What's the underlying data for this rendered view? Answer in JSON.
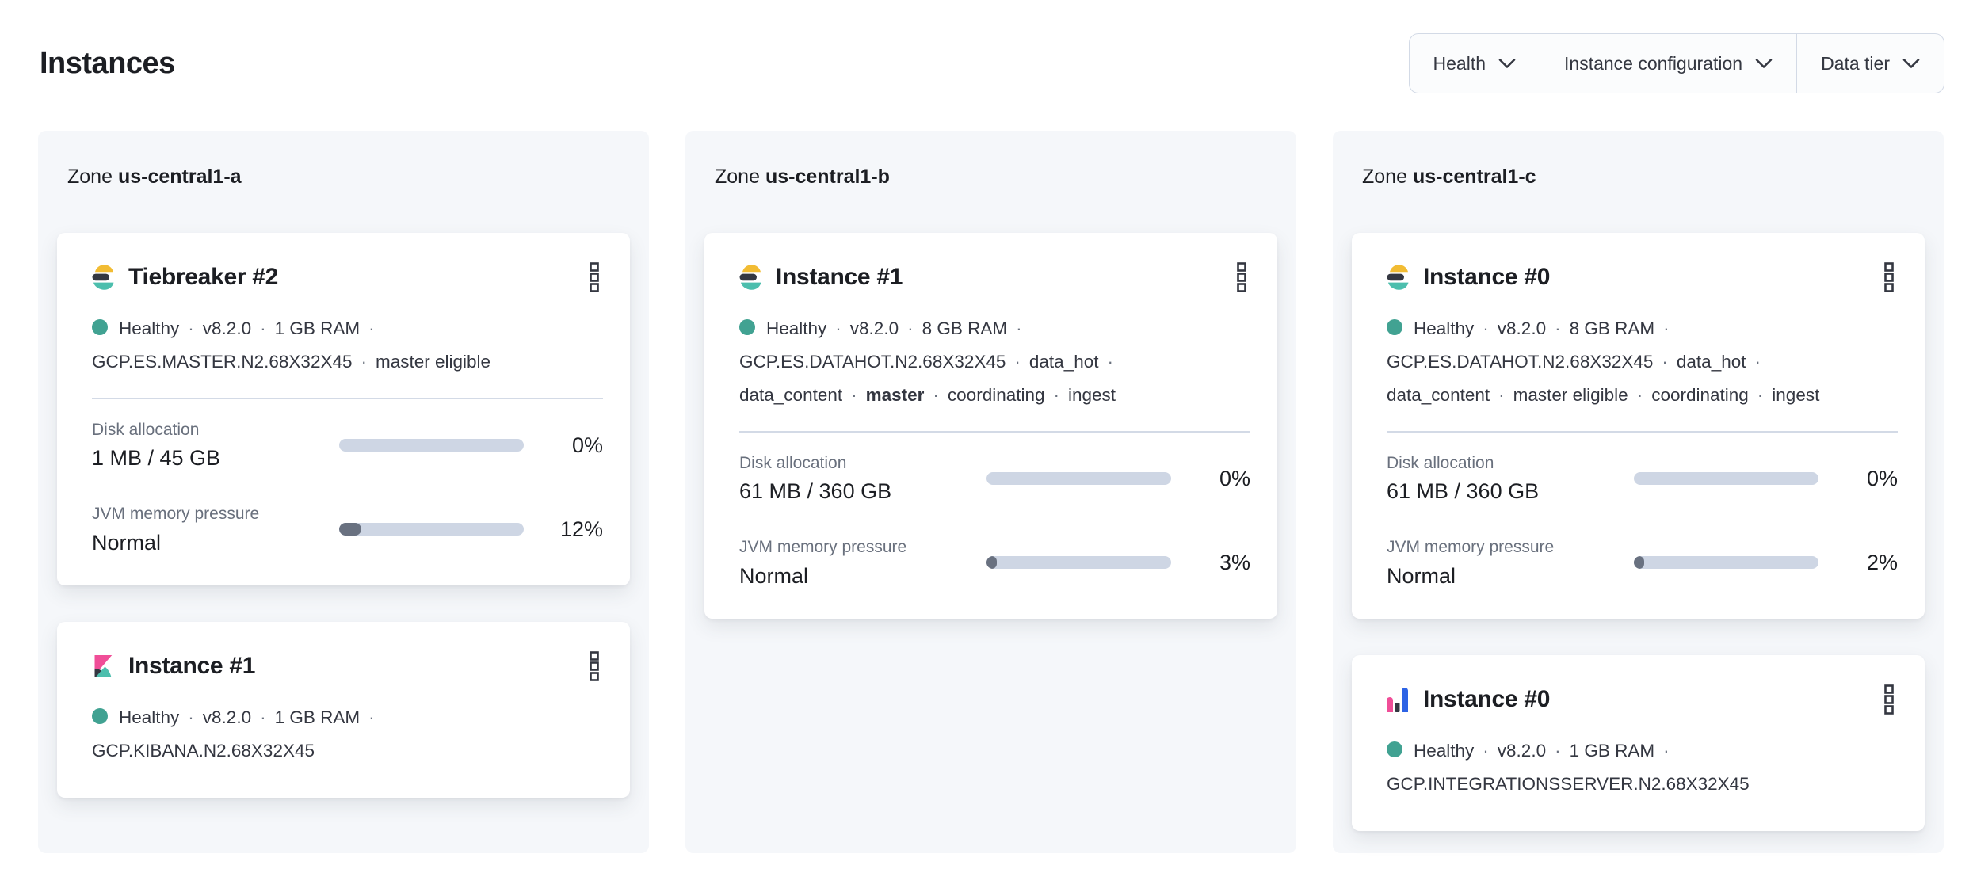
{
  "page": {
    "title": "Instances"
  },
  "filters": [
    {
      "label": "Health"
    },
    {
      "label": "Instance configuration"
    },
    {
      "label": "Data tier"
    }
  ],
  "colors": {
    "healthy_dot": "#41A292",
    "panel_bg": "#F5F7FA",
    "bar_track": "#CED6E4",
    "bar_fill": "#697180",
    "logo_yellow": "#F2BC33",
    "logo_dark": "#343741",
    "logo_teal": "#4CBEAD",
    "logo_pink": "#F04E98",
    "logo_blue": "#2D63E5"
  },
  "zones": [
    {
      "label_prefix": "Zone",
      "name": "us-central1-a",
      "cards": [
        {
          "logo": "elasticsearch",
          "title": "Tiebreaker #2",
          "menu_icon": "boxes-vertical",
          "meta_lines": [
            {
              "segs": [
                {
                  "t": "Healthy",
                  "dot": true
                },
                {
                  "t": "v8.2.0"
                },
                {
                  "t": "1 GB RAM"
                }
              ],
              "trail": true
            },
            {
              "segs": [
                {
                  "t": "GCP.ES.MASTER.N2.68X32X45"
                },
                {
                  "t": "master eligible"
                }
              ],
              "trail": false
            }
          ],
          "metrics": [
            {
              "label": "Disk allocation",
              "value": "1 MB / 45 GB",
              "pct": "0%",
              "fill": 0
            },
            {
              "label": "JVM memory pressure",
              "value": "Normal",
              "pct": "12%",
              "fill": 12
            }
          ]
        },
        {
          "logo": "kibana",
          "title": "Instance #1",
          "menu_icon": "boxes-vertical",
          "meta_lines": [
            {
              "segs": [
                {
                  "t": "Healthy",
                  "dot": true
                },
                {
                  "t": "v8.2.0"
                },
                {
                  "t": "1 GB RAM"
                }
              ],
              "trail": true
            },
            {
              "segs": [
                {
                  "t": "GCP.KIBANA.N2.68X32X45"
                }
              ],
              "trail": false
            }
          ],
          "metrics": []
        }
      ]
    },
    {
      "label_prefix": "Zone",
      "name": "us-central1-b",
      "cards": [
        {
          "logo": "elasticsearch",
          "title": "Instance #1",
          "menu_icon": "boxes-vertical",
          "meta_lines": [
            {
              "segs": [
                {
                  "t": "Healthy",
                  "dot": true
                },
                {
                  "t": "v8.2.0"
                },
                {
                  "t": "8 GB RAM"
                }
              ],
              "trail": true
            },
            {
              "segs": [
                {
                  "t": "GCP.ES.DATAHOT.N2.68X32X45"
                },
                {
                  "t": "data_hot"
                }
              ],
              "trail": true
            },
            {
              "segs": [
                {
                  "t": "data_content"
                },
                {
                  "t": "master",
                  "b": true
                },
                {
                  "t": "coordinating"
                },
                {
                  "t": "ingest"
                }
              ],
              "trail": false
            }
          ],
          "metrics": [
            {
              "label": "Disk allocation",
              "value": "61 MB / 360 GB",
              "pct": "0%",
              "fill": 0
            },
            {
              "label": "JVM memory pressure",
              "value": "Normal",
              "pct": "3%",
              "fill": 3
            }
          ]
        }
      ]
    },
    {
      "label_prefix": "Zone",
      "name": "us-central1-c",
      "cards": [
        {
          "logo": "elasticsearch",
          "title": "Instance #0",
          "menu_icon": "boxes-vertical",
          "meta_lines": [
            {
              "segs": [
                {
                  "t": "Healthy",
                  "dot": true
                },
                {
                  "t": "v8.2.0"
                },
                {
                  "t": "8 GB RAM"
                }
              ],
              "trail": true
            },
            {
              "segs": [
                {
                  "t": "GCP.ES.DATAHOT.N2.68X32X45"
                },
                {
                  "t": "data_hot"
                }
              ],
              "trail": true
            },
            {
              "segs": [
                {
                  "t": "data_content"
                },
                {
                  "t": "master eligible"
                },
                {
                  "t": "coordinating"
                },
                {
                  "t": "ingest"
                }
              ],
              "trail": false
            }
          ],
          "metrics": [
            {
              "label": "Disk allocation",
              "value": "61 MB / 360 GB",
              "pct": "0%",
              "fill": 0
            },
            {
              "label": "JVM memory pressure",
              "value": "Normal",
              "pct": "2%",
              "fill": 2
            }
          ]
        },
        {
          "logo": "integrations-server",
          "title": "Instance #0",
          "menu_icon": "boxes-vertical",
          "meta_lines": [
            {
              "segs": [
                {
                  "t": "Healthy",
                  "dot": true
                },
                {
                  "t": "v8.2.0"
                },
                {
                  "t": "1 GB RAM"
                }
              ],
              "trail": true
            },
            {
              "segs": [
                {
                  "t": "GCP.INTEGRATIONSSERVER.N2.68X32X45"
                }
              ],
              "trail": false
            }
          ],
          "metrics": []
        }
      ]
    }
  ]
}
